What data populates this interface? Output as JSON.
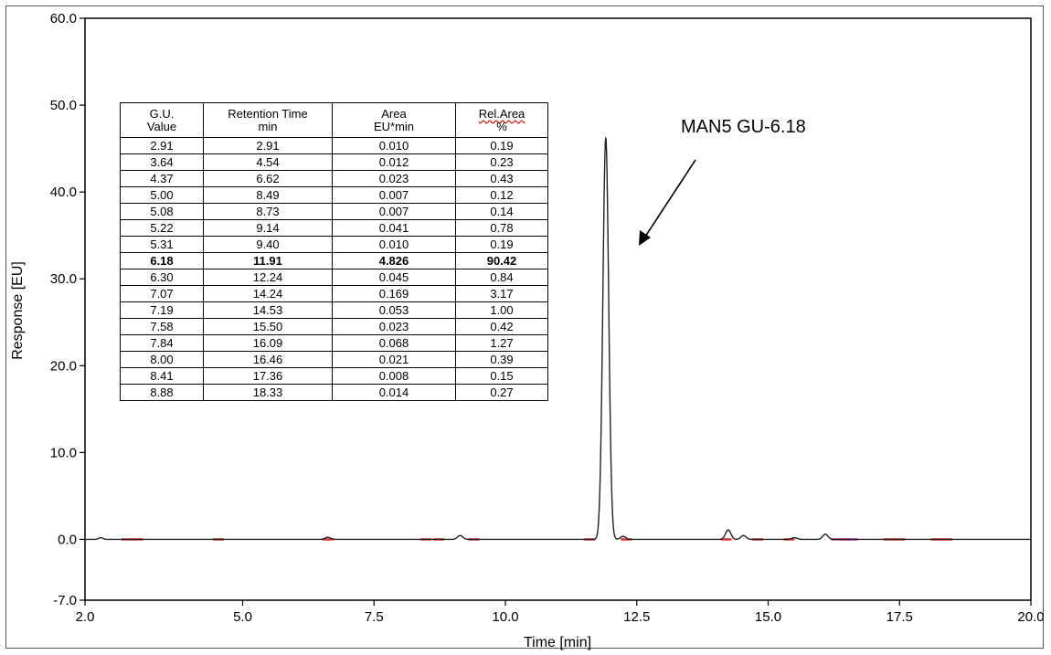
{
  "chart_data": {
    "type": "line",
    "xlabel": "Time [min]",
    "ylabel": "Response [EU]",
    "xlim": [
      2.0,
      20.0
    ],
    "ylim": [
      -7.0,
      60.0
    ],
    "x_ticks": [
      2.0,
      5.0,
      7.5,
      10.0,
      12.5,
      15.0,
      17.5,
      20.0
    ],
    "x_tick_labels": [
      "2.0",
      "5.0",
      "7.5",
      "10.0",
      "12.5",
      "15.0",
      "17.5",
      "20.0"
    ],
    "y_ticks": [
      -7.0,
      0.0,
      10.0,
      20.0,
      30.0,
      40.0,
      50.0,
      60.0
    ],
    "y_tick_labels": [
      "-7.0",
      "0.0",
      "10.0",
      "20.0",
      "30.0",
      "40.0",
      "50.0",
      "60.0"
    ],
    "line_color": "#222222",
    "marker_color": "#e03030",
    "marker_alt_color": "#c040c0",
    "baseline": 0.0,
    "peaks": [
      {
        "x": 2.3,
        "y": 0.2,
        "w": 0.04
      },
      {
        "x": 6.62,
        "y": 0.25,
        "w": 0.05
      },
      {
        "x": 9.14,
        "y": 0.45,
        "w": 0.05
      },
      {
        "x": 11.91,
        "y": 46.3,
        "w": 0.055
      },
      {
        "x": 12.24,
        "y": 0.35,
        "w": 0.05
      },
      {
        "x": 14.24,
        "y": 1.1,
        "w": 0.05
      },
      {
        "x": 14.53,
        "y": 0.45,
        "w": 0.05
      },
      {
        "x": 15.5,
        "y": 0.2,
        "w": 0.05
      },
      {
        "x": 16.09,
        "y": 0.6,
        "w": 0.05
      }
    ],
    "baseline_markers": [
      2.8,
      3.0,
      4.54,
      6.62,
      8.49,
      8.73,
      9.4,
      11.6,
      12.3,
      14.2,
      14.8,
      15.4,
      16.46,
      17.3,
      17.5,
      18.2,
      18.4
    ],
    "baseline_markers_alt": [
      16.3,
      16.6
    ],
    "annotation": {
      "text": "MAN5 GU-6.18"
    }
  },
  "table": {
    "headers": [
      [
        "G.U.",
        "Value"
      ],
      [
        "Retention Time",
        "min"
      ],
      [
        "Area",
        "EU*min"
      ],
      [
        "Rel.Area",
        "%"
      ]
    ],
    "rows": [
      [
        "2.91",
        "2.91",
        "0.010",
        "0.19"
      ],
      [
        "3.64",
        "4.54",
        "0.012",
        "0.23"
      ],
      [
        "4.37",
        "6.62",
        "0.023",
        "0.43"
      ],
      [
        "5.00",
        "8.49",
        "0.007",
        "0.12"
      ],
      [
        "5.08",
        "8.73",
        "0.007",
        "0.14"
      ],
      [
        "5.22",
        "9.14",
        "0.041",
        "0.78"
      ],
      [
        "5.31",
        "9.40",
        "0.010",
        "0.19"
      ],
      [
        "6.18",
        "11.91",
        "4.826",
        "90.42"
      ],
      [
        "6.30",
        "12.24",
        "0.045",
        "0.84"
      ],
      [
        "7.07",
        "14.24",
        "0.169",
        "3.17"
      ],
      [
        "7.19",
        "14.53",
        "0.053",
        "1.00"
      ],
      [
        "7.58",
        "15.50",
        "0.023",
        "0.42"
      ],
      [
        "7.84",
        "16.09",
        "0.068",
        "1.27"
      ],
      [
        "8.00",
        "16.46",
        "0.021",
        "0.39"
      ],
      [
        "8.41",
        "17.36",
        "0.008",
        "0.15"
      ],
      [
        "8.88",
        "18.33",
        "0.014",
        "0.27"
      ]
    ],
    "bold_row": 7
  }
}
